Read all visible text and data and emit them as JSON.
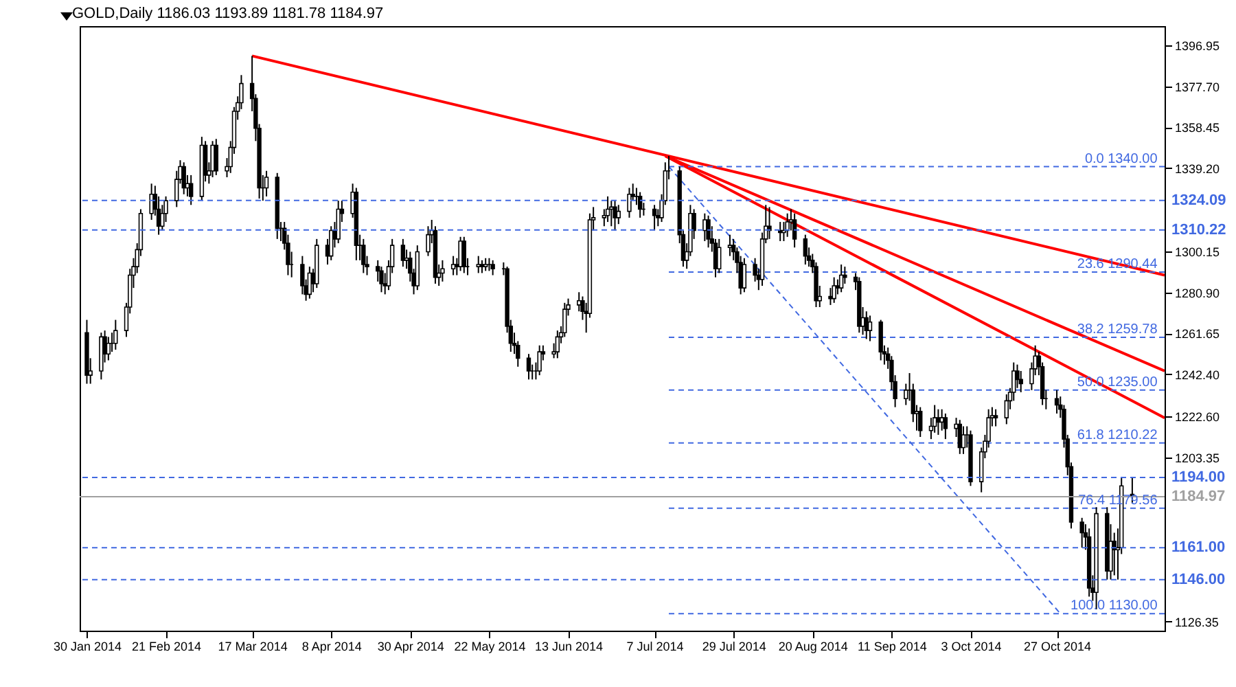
{
  "chart_data": {
    "type": "candlestick",
    "title": "GOLD,Daily  1186.03 1193.89 1181.78 1184.97",
    "x": [
      "2014-01-30",
      "2014-01-31",
      "2014-02-03",
      "2014-02-04",
      "2014-02-05",
      "2014-02-06",
      "2014-02-07",
      "2014-02-10",
      "2014-02-11",
      "2014-02-12",
      "2014-02-13",
      "2014-02-14",
      "2014-02-17",
      "2014-02-18",
      "2014-02-19",
      "2014-02-20",
      "2014-02-21",
      "2014-02-24",
      "2014-02-25",
      "2014-02-26",
      "2014-02-27",
      "2014-02-28",
      "2014-03-03",
      "2014-03-04",
      "2014-03-05",
      "2014-03-06",
      "2014-03-07",
      "2014-03-10",
      "2014-03-11",
      "2014-03-12",
      "2014-03-13",
      "2014-03-14",
      "2014-03-17",
      "2014-03-18",
      "2014-03-19",
      "2014-03-20",
      "2014-03-21",
      "2014-03-24",
      "2014-03-25",
      "2014-03-26",
      "2014-03-27",
      "2014-03-28",
      "2014-03-31",
      "2014-04-01",
      "2014-04-02",
      "2014-04-03",
      "2014-04-04",
      "2014-04-07",
      "2014-04-08",
      "2014-04-09",
      "2014-04-10",
      "2014-04-11",
      "2014-04-14",
      "2014-04-15",
      "2014-04-16",
      "2014-04-17",
      "2014-04-18",
      "2014-04-21",
      "2014-04-22",
      "2014-04-23",
      "2014-04-24",
      "2014-04-25",
      "2014-04-28",
      "2014-04-29",
      "2014-04-30",
      "2014-05-01",
      "2014-05-02",
      "2014-05-05",
      "2014-05-06",
      "2014-05-07",
      "2014-05-08",
      "2014-05-09",
      "2014-05-12",
      "2014-05-13",
      "2014-05-14",
      "2014-05-15",
      "2014-05-16",
      "2014-05-19",
      "2014-05-20",
      "2014-05-21",
      "2014-05-22",
      "2014-05-23",
      "2014-05-26",
      "2014-05-27",
      "2014-05-28",
      "2014-05-29",
      "2014-05-30",
      "2014-06-02",
      "2014-06-03",
      "2014-06-04",
      "2014-06-05",
      "2014-06-06",
      "2014-06-09",
      "2014-06-10",
      "2014-06-11",
      "2014-06-12",
      "2014-06-13",
      "2014-06-16",
      "2014-06-17",
      "2014-06-18",
      "2014-06-19",
      "2014-06-20",
      "2014-06-23",
      "2014-06-24",
      "2014-06-25",
      "2014-06-26",
      "2014-06-27",
      "2014-06-30",
      "2014-07-01",
      "2014-07-02",
      "2014-07-03",
      "2014-07-04",
      "2014-07-07",
      "2014-07-08",
      "2014-07-09",
      "2014-07-10",
      "2014-07-11",
      "2014-07-14",
      "2014-07-15",
      "2014-07-16",
      "2014-07-17",
      "2014-07-18",
      "2014-07-21",
      "2014-07-22",
      "2014-07-23",
      "2014-07-24",
      "2014-07-25",
      "2014-07-28",
      "2014-07-29",
      "2014-07-30",
      "2014-07-31",
      "2014-08-01",
      "2014-08-04",
      "2014-08-05",
      "2014-08-06",
      "2014-08-07",
      "2014-08-08",
      "2014-08-11",
      "2014-08-12",
      "2014-08-13",
      "2014-08-14",
      "2014-08-15",
      "2014-08-18",
      "2014-08-19",
      "2014-08-20",
      "2014-08-21",
      "2014-08-22",
      "2014-08-25",
      "2014-08-26",
      "2014-08-27",
      "2014-08-28",
      "2014-08-29",
      "2014-09-01",
      "2014-09-02",
      "2014-09-03",
      "2014-09-04",
      "2014-09-05",
      "2014-09-08",
      "2014-09-09",
      "2014-09-10",
      "2014-09-11",
      "2014-09-12",
      "2014-09-15",
      "2014-09-16",
      "2014-09-17",
      "2014-09-18",
      "2014-09-19",
      "2014-09-22",
      "2014-09-23",
      "2014-09-24",
      "2014-09-25",
      "2014-09-26",
      "2014-09-29",
      "2014-09-30",
      "2014-10-01",
      "2014-10-02",
      "2014-10-03",
      "2014-10-06",
      "2014-10-07",
      "2014-10-08",
      "2014-10-09",
      "2014-10-10",
      "2014-10-13",
      "2014-10-14",
      "2014-10-15",
      "2014-10-16",
      "2014-10-17",
      "2014-10-20",
      "2014-10-21",
      "2014-10-22",
      "2014-10-23",
      "2014-10-24",
      "2014-10-27",
      "2014-10-28",
      "2014-10-29",
      "2014-10-30",
      "2014-10-31",
      "2014-11-03",
      "2014-11-04",
      "2014-11-05",
      "2014-11-06",
      "2014-11-07",
      "2014-11-10",
      "2014-11-11",
      "2014-11-12",
      "2014-11-13",
      "2014-11-14",
      "2014-11-17"
    ],
    "ohlc": [
      [
        1262,
        1268,
        1238,
        1242
      ],
      [
        1242,
        1250,
        1238,
        1244
      ],
      [
        1244,
        1262,
        1240,
        1260
      ],
      [
        1260,
        1263,
        1248,
        1252
      ],
      [
        1252,
        1260,
        1249,
        1257
      ],
      [
        1257,
        1262,
        1253,
        1257
      ],
      [
        1257,
        1268,
        1254,
        1263
      ],
      [
        1263,
        1276,
        1260,
        1274
      ],
      [
        1274,
        1292,
        1271,
        1289
      ],
      [
        1289,
        1297,
        1283,
        1293
      ],
      [
        1293,
        1304,
        1290,
        1301
      ],
      [
        1301,
        1320,
        1298,
        1318
      ],
      [
        1318,
        1332,
        1315,
        1327
      ],
      [
        1327,
        1331,
        1317,
        1320
      ],
      [
        1320,
        1326,
        1308,
        1312
      ],
      [
        1312,
        1322,
        1310,
        1318
      ],
      [
        1318,
        1326,
        1314,
        1324
      ],
      [
        1324,
        1338,
        1321,
        1334
      ],
      [
        1334,
        1343,
        1332,
        1340
      ],
      [
        1340,
        1342,
        1327,
        1330
      ],
      [
        1330,
        1336,
        1326,
        1332
      ],
      [
        1332,
        1336,
        1322,
        1326
      ],
      [
        1326,
        1354,
        1324,
        1350
      ],
      [
        1350,
        1352,
        1333,
        1336
      ],
      [
        1336,
        1342,
        1332,
        1338
      ],
      [
        1338,
        1352,
        1335,
        1350
      ],
      [
        1350,
        1353,
        1336,
        1338
      ],
      [
        1338,
        1344,
        1335,
        1340
      ],
      [
        1340,
        1352,
        1337,
        1349
      ],
      [
        1349,
        1368,
        1346,
        1366
      ],
      [
        1366,
        1373,
        1362,
        1370
      ],
      [
        1370,
        1383,
        1367,
        1379
      ],
      [
        1379,
        1392,
        1366,
        1372
      ],
      [
        1372,
        1374,
        1352,
        1358
      ],
      [
        1358,
        1360,
        1325,
        1330
      ],
      [
        1330,
        1336,
        1324,
        1330
      ],
      [
        1330,
        1338,
        1326,
        1335
      ],
      [
        1335,
        1337,
        1306,
        1311
      ],
      [
        1311,
        1314,
        1305,
        1311
      ],
      [
        1311,
        1314,
        1301,
        1304
      ],
      [
        1304,
        1308,
        1289,
        1294
      ],
      [
        1294,
        1300,
        1288,
        1294
      ],
      [
        1294,
        1298,
        1280,
        1284
      ],
      [
        1284,
        1287,
        1277,
        1280
      ],
      [
        1280,
        1293,
        1278,
        1290
      ],
      [
        1290,
        1292,
        1281,
        1285
      ],
      [
        1285,
        1306,
        1283,
        1303
      ],
      [
        1303,
        1306,
        1294,
        1298
      ],
      [
        1298,
        1312,
        1296,
        1310
      ],
      [
        1310,
        1314,
        1302,
        1306
      ],
      [
        1306,
        1324,
        1304,
        1320
      ],
      [
        1320,
        1324,
        1314,
        1318
      ],
      [
        1318,
        1332,
        1316,
        1328
      ],
      [
        1328,
        1330,
        1296,
        1303
      ],
      [
        1303,
        1308,
        1296,
        1303
      ],
      [
        1303,
        1306,
        1290,
        1294
      ],
      [
        1294,
        1298,
        1289,
        1293
      ],
      [
        1293,
        1296,
        1286,
        1291
      ],
      [
        1291,
        1293,
        1281,
        1285
      ],
      [
        1285,
        1290,
        1280,
        1284
      ],
      [
        1284,
        1296,
        1282,
        1293
      ],
      [
        1293,
        1306,
        1290,
        1303
      ],
      [
        1303,
        1306,
        1293,
        1296
      ],
      [
        1296,
        1301,
        1292,
        1297
      ],
      [
        1297,
        1300,
        1286,
        1290
      ],
      [
        1290,
        1292,
        1280,
        1284
      ],
      [
        1284,
        1303,
        1282,
        1300
      ],
      [
        1300,
        1312,
        1298,
        1308
      ],
      [
        1308,
        1315,
        1304,
        1310
      ],
      [
        1310,
        1312,
        1285,
        1288
      ],
      [
        1288,
        1294,
        1284,
        1290
      ],
      [
        1290,
        1296,
        1286,
        1292
      ],
      [
        1292,
        1298,
        1289,
        1294
      ],
      [
        1294,
        1297,
        1289,
        1293
      ],
      [
        1293,
        1307,
        1291,
        1305
      ],
      [
        1305,
        1307,
        1290,
        1293
      ],
      [
        1293,
        1297,
        1289,
        1293
      ],
      [
        1293,
        1298,
        1290,
        1294
      ],
      [
        1294,
        1296,
        1290,
        1293
      ],
      [
        1293,
        1297,
        1291,
        1294
      ],
      [
        1294,
        1297,
        1291,
        1294
      ],
      [
        1294,
        1296,
        1289,
        1292
      ],
      [
        1292,
        1295,
        1289,
        1292
      ],
      [
        1292,
        1293,
        1262,
        1265
      ],
      [
        1265,
        1268,
        1253,
        1257
      ],
      [
        1257,
        1262,
        1252,
        1256
      ],
      [
        1256,
        1258,
        1246,
        1250
      ],
      [
        1250,
        1252,
        1240,
        1244
      ],
      [
        1244,
        1247,
        1240,
        1244
      ],
      [
        1244,
        1248,
        1240,
        1244
      ],
      [
        1244,
        1256,
        1242,
        1253
      ],
      [
        1253,
        1256,
        1249,
        1252
      ],
      [
        1252,
        1257,
        1250,
        1253
      ],
      [
        1253,
        1263,
        1250,
        1260
      ],
      [
        1260,
        1265,
        1257,
        1262
      ],
      [
        1262,
        1276,
        1260,
        1273
      ],
      [
        1273,
        1278,
        1270,
        1275
      ],
      [
        1275,
        1281,
        1272,
        1277
      ],
      [
        1277,
        1279,
        1268,
        1272
      ],
      [
        1272,
        1276,
        1262,
        1271
      ],
      [
        1271,
        1318,
        1269,
        1315
      ],
      [
        1315,
        1321,
        1310,
        1316
      ],
      [
        1316,
        1320,
        1312,
        1317
      ],
      [
        1317,
        1326,
        1314,
        1320
      ],
      [
        1320,
        1324,
        1312,
        1321
      ],
      [
        1321,
        1324,
        1310,
        1316
      ],
      [
        1316,
        1322,
        1313,
        1319
      ],
      [
        1319,
        1330,
        1316,
        1327
      ],
      [
        1327,
        1332,
        1324,
        1326
      ],
      [
        1326,
        1330,
        1322,
        1326
      ],
      [
        1326,
        1328,
        1316,
        1320
      ],
      [
        1320,
        1323,
        1317,
        1320
      ],
      [
        1320,
        1322,
        1310,
        1317
      ],
      [
        1317,
        1320,
        1312,
        1316
      ],
      [
        1316,
        1327,
        1314,
        1324
      ],
      [
        1324,
        1342,
        1322,
        1338
      ],
      [
        1338,
        1345,
        1334,
        1338
      ],
      [
        1338,
        1340,
        1304,
        1308
      ],
      [
        1308,
        1310,
        1293,
        1296
      ],
      [
        1296,
        1304,
        1292,
        1300
      ],
      [
        1300,
        1322,
        1298,
        1318
      ],
      [
        1318,
        1320,
        1306,
        1310
      ],
      [
        1310,
        1318,
        1305,
        1315
      ],
      [
        1315,
        1317,
        1302,
        1306
      ],
      [
        1306,
        1312,
        1300,
        1304
      ],
      [
        1304,
        1306,
        1288,
        1292
      ],
      [
        1292,
        1306,
        1290,
        1302
      ],
      [
        1302,
        1308,
        1298,
        1303
      ],
      [
        1303,
        1306,
        1296,
        1300
      ],
      [
        1300,
        1302,
        1290,
        1295
      ],
      [
        1295,
        1298,
        1280,
        1283
      ],
      [
        1283,
        1297,
        1281,
        1294
      ],
      [
        1294,
        1297,
        1286,
        1289
      ],
      [
        1289,
        1292,
        1282,
        1287
      ],
      [
        1287,
        1309,
        1284,
        1306
      ],
      [
        1306,
        1322,
        1304,
        1312
      ],
      [
        1312,
        1321,
        1306,
        1310
      ],
      [
        1310,
        1314,
        1305,
        1309
      ],
      [
        1309,
        1314,
        1305,
        1310
      ],
      [
        1310,
        1318,
        1307,
        1314
      ],
      [
        1314,
        1320,
        1310,
        1315
      ],
      [
        1315,
        1318,
        1302,
        1306
      ],
      [
        1306,
        1308,
        1294,
        1298
      ],
      [
        1298,
        1302,
        1293,
        1296
      ],
      [
        1296,
        1299,
        1290,
        1293
      ],
      [
        1293,
        1295,
        1274,
        1277
      ],
      [
        1277,
        1284,
        1274,
        1279
      ],
      [
        1279,
        1283,
        1275,
        1278
      ],
      [
        1278,
        1288,
        1276,
        1284
      ],
      [
        1284,
        1287,
        1280,
        1283
      ],
      [
        1283,
        1294,
        1281,
        1289
      ],
      [
        1289,
        1293,
        1285,
        1288
      ],
      [
        1288,
        1290,
        1282,
        1286
      ],
      [
        1286,
        1288,
        1262,
        1265
      ],
      [
        1265,
        1274,
        1261,
        1269
      ],
      [
        1269,
        1272,
        1259,
        1263
      ],
      [
        1263,
        1270,
        1258,
        1267
      ],
      [
        1267,
        1268,
        1249,
        1253
      ],
      [
        1253,
        1256,
        1247,
        1252
      ],
      [
        1252,
        1255,
        1245,
        1249
      ],
      [
        1249,
        1251,
        1235,
        1239
      ],
      [
        1239,
        1242,
        1227,
        1231
      ],
      [
        1231,
        1238,
        1228,
        1235
      ],
      [
        1235,
        1243,
        1230,
        1235
      ],
      [
        1235,
        1238,
        1220,
        1224
      ],
      [
        1224,
        1228,
        1216,
        1225
      ],
      [
        1225,
        1227,
        1213,
        1216
      ],
      [
        1216,
        1222,
        1212,
        1218
      ],
      [
        1218,
        1228,
        1215,
        1222
      ],
      [
        1222,
        1226,
        1214,
        1220
      ],
      [
        1220,
        1226,
        1216,
        1222
      ],
      [
        1222,
        1224,
        1212,
        1217
      ],
      [
        1217,
        1222,
        1213,
        1219
      ],
      [
        1219,
        1221,
        1205,
        1208
      ],
      [
        1208,
        1218,
        1205,
        1214
      ],
      [
        1214,
        1218,
        1208,
        1214
      ],
      [
        1214,
        1216,
        1190,
        1192
      ],
      [
        1192,
        1208,
        1187,
        1206
      ],
      [
        1206,
        1214,
        1203,
        1211
      ],
      [
        1211,
        1226,
        1208,
        1222
      ],
      [
        1222,
        1227,
        1218,
        1223
      ],
      [
        1223,
        1226,
        1218,
        1222
      ],
      [
        1222,
        1233,
        1219,
        1230
      ],
      [
        1230,
        1236,
        1226,
        1234
      ],
      [
        1234,
        1248,
        1230,
        1244
      ],
      [
        1244,
        1247,
        1236,
        1240
      ],
      [
        1240,
        1244,
        1234,
        1238
      ],
      [
        1238,
        1248,
        1235,
        1245
      ],
      [
        1245,
        1256,
        1242,
        1251
      ],
      [
        1251,
        1253,
        1242,
        1246
      ],
      [
        1246,
        1248,
        1228,
        1231
      ],
      [
        1231,
        1235,
        1226,
        1231
      ],
      [
        1231,
        1235,
        1224,
        1228
      ],
      [
        1228,
        1232,
        1222,
        1226
      ],
      [
        1226,
        1228,
        1208,
        1212
      ],
      [
        1212,
        1214,
        1195,
        1199
      ],
      [
        1199,
        1201,
        1170,
        1173
      ],
      [
        1173,
        1175,
        1161,
        1168
      ],
      [
        1168,
        1172,
        1160,
        1166
      ],
      [
        1166,
        1170,
        1138,
        1142
      ],
      [
        1142,
        1148,
        1136,
        1140
      ],
      [
        1140,
        1180,
        1132,
        1177
      ],
      [
        1177,
        1180,
        1146,
        1150
      ],
      [
        1150,
        1172,
        1146,
        1164
      ],
      [
        1164,
        1168,
        1148,
        1160
      ],
      [
        1160,
        1170,
        1146,
        1161
      ],
      [
        1161,
        1194,
        1158,
        1190
      ],
      [
        1186.03,
        1193.89,
        1181.78,
        1184.97
      ]
    ],
    "series": [
      {
        "type": "line",
        "color": "#ff0000",
        "line_style": "solid",
        "x": [
          "2014-03-17",
          "2014-11-26"
        ],
        "values": [
          1392,
          1289
        ]
      },
      {
        "type": "line",
        "color": "#ff0000",
        "line_style": "solid",
        "x": [
          "2014-07-10",
          "2014-11-26"
        ],
        "values": [
          1345,
          1244
        ]
      },
      {
        "type": "line",
        "color": "#ff0000",
        "line_style": "solid",
        "x": [
          "2014-07-10",
          "2014-11-26"
        ],
        "values": [
          1345,
          1222
        ]
      },
      {
        "type": "line",
        "color": "#4169e1",
        "line_style": "dashed",
        "x": [
          "2014-07-11",
          "2014-10-28"
        ],
        "values": [
          1340,
          1130
        ]
      },
      {
        "type": "line",
        "color": "#4169e1",
        "line_style": "dashed",
        "x": [
          "2014-07-11",
          "2014-11-26"
        ],
        "values": [
          1340,
          1340
        ]
      },
      {
        "type": "line",
        "color": "#4169e1",
        "line_style": "dashed",
        "x": [
          "2014-07-11",
          "2014-11-26"
        ],
        "values": [
          1290.44,
          1290.44
        ]
      },
      {
        "type": "line",
        "color": "#4169e1",
        "line_style": "dashed",
        "x": [
          "2014-07-11",
          "2014-11-26"
        ],
        "values": [
          1259.78,
          1259.78
        ]
      },
      {
        "type": "line",
        "color": "#4169e1",
        "line_style": "dashed",
        "x": [
          "2014-07-11",
          "2014-11-26"
        ],
        "values": [
          1235,
          1235
        ]
      },
      {
        "type": "line",
        "color": "#4169e1",
        "line_style": "dashed",
        "x": [
          "2014-07-11",
          "2014-11-26"
        ],
        "values": [
          1210.22,
          1210.22
        ]
      },
      {
        "type": "line",
        "color": "#4169e1",
        "line_style": "dashed",
        "x": [
          "2014-07-11",
          "2014-11-26"
        ],
        "values": [
          1179.56,
          1179.56
        ]
      },
      {
        "type": "line",
        "color": "#4169e1",
        "line_style": "dashed",
        "x": [
          "2014-07-11",
          "2014-11-26"
        ],
        "values": [
          1130,
          1130
        ]
      }
    ],
    "ref_lines": [
      {
        "axis": "y",
        "value": 1324.09,
        "label": "1324.09",
        "color": "#4169e1",
        "line_style": "dashed"
      },
      {
        "axis": "y",
        "value": 1310.22,
        "label": "1310.22",
        "color": "#4169e1",
        "line_style": "dashed"
      },
      {
        "axis": "y",
        "value": 1194,
        "label": "1194.00",
        "color": "#4169e1",
        "line_style": "dashed"
      },
      {
        "axis": "y",
        "value": 1184.97,
        "label": "1184.97",
        "color": "#a0a0a0",
        "line_style": "solid"
      },
      {
        "axis": "y",
        "value": 1161,
        "label": "1161.00",
        "color": "#4169e1",
        "line_style": "dashed"
      },
      {
        "axis": "y",
        "value": 1146,
        "label": "1146.00",
        "color": "#4169e1",
        "line_style": "dashed"
      }
    ],
    "annotations": [
      {
        "text": "0.0 1340.00",
        "x": "2014-11-24",
        "y": 1340
      },
      {
        "text": "23.6 1290.44",
        "x": "2014-11-24",
        "y": 1290.44
      },
      {
        "text": "38.2 1259.78",
        "x": "2014-11-24",
        "y": 1259.78
      },
      {
        "text": "50.0 1235.00",
        "x": "2014-11-24",
        "y": 1235
      },
      {
        "text": "61.8 1210.22",
        "x": "2014-11-24",
        "y": 1210.22
      },
      {
        "text": "76.4 1179.56",
        "x": "2014-11-24",
        "y": 1179.56
      },
      {
        "text": "100.0 1130.00",
        "x": "2014-11-24",
        "y": 1130
      }
    ],
    "xlim": [
      "2014-01-28",
      "2014-11-26"
    ],
    "xticks": [
      {
        "value": "2014-01-30",
        "label": "30 Jan 2014"
      },
      {
        "value": "2014-02-21",
        "label": "21 Feb 2014"
      },
      {
        "value": "2014-03-17",
        "label": "17 Mar 2014"
      },
      {
        "value": "2014-04-08",
        "label": "8 Apr 2014"
      },
      {
        "value": "2014-04-30",
        "label": "30 Apr 2014"
      },
      {
        "value": "2014-05-22",
        "label": "22 May 2014"
      },
      {
        "value": "2014-06-13",
        "label": "13 Jun 2014"
      },
      {
        "value": "2014-07-07",
        "label": "7 Jul 2014"
      },
      {
        "value": "2014-07-29",
        "label": "29 Jul 2014"
      },
      {
        "value": "2014-08-20",
        "label": "20 Aug 2014"
      },
      {
        "value": "2014-09-11",
        "label": "11 Sep 2014"
      },
      {
        "value": "2014-10-03",
        "label": "3 Oct 2014"
      },
      {
        "value": "2014-10-27",
        "label": "27 Oct 2014"
      }
    ],
    "ylim": [
      1122,
      1406
    ],
    "yticks": [
      1396.95,
      {
        "value": 1377.7,
        "label": "1377.70"
      },
      {
        "value": 1358.45,
        "label": "1358.45"
      },
      {
        "value": 1339.2,
        "label": "1339.20"
      },
      {
        "value": 1300.15,
        "label": "1300.15"
      },
      {
        "value": 1280.9,
        "label": "1280.90"
      },
      {
        "value": 1261.65,
        "label": "1261.65"
      },
      {
        "value": 1242.4,
        "label": "1242.40"
      },
      {
        "value": 1222.6,
        "label": "1222.60"
      },
      {
        "value": 1203.35,
        "label": "1203.35"
      },
      {
        "value": 1126.35,
        "label": "1126.35"
      }
    ]
  }
}
